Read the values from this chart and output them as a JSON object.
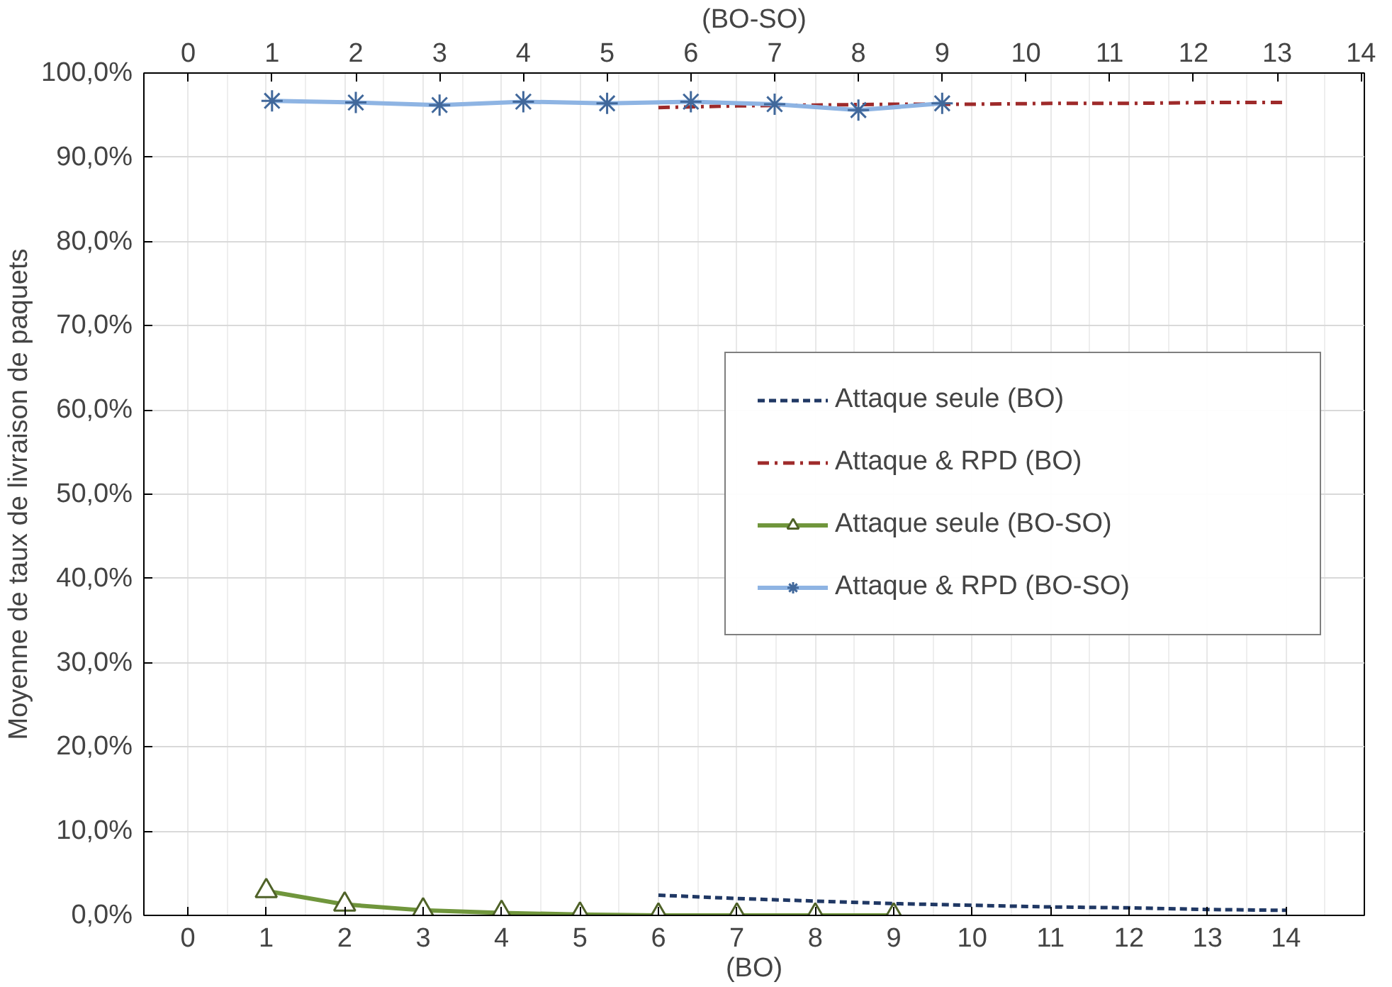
{
  "chart_data": {
    "type": "line",
    "xlabel": "(BO)",
    "x2label": "(BO-SO)",
    "ylabel": "Moyenne de taux de livraison de paquets",
    "xlim": [
      -0.56,
      15.0
    ],
    "xticks": [
      0,
      1,
      2,
      3,
      4,
      5,
      6,
      7,
      8,
      9,
      10,
      11,
      12,
      13,
      14
    ],
    "x2lim": [
      -0.53,
      14.04
    ],
    "x2ticks": [
      0,
      1,
      2,
      3,
      4,
      5,
      6,
      7,
      8,
      9,
      10,
      11,
      12,
      13,
      14
    ],
    "ylim": [
      0,
      100
    ],
    "yticks": [
      {
        "value": 0,
        "label": "0,0%"
      },
      {
        "value": 10,
        "label": "10,0%"
      },
      {
        "value": 20,
        "label": "20,0%"
      },
      {
        "value": 30,
        "label": "30,0%"
      },
      {
        "value": 40,
        "label": "40,0%"
      },
      {
        "value": 50,
        "label": "50,0%"
      },
      {
        "value": 60,
        "label": "60,0%"
      },
      {
        "value": 70,
        "label": "70,0%"
      },
      {
        "value": 80,
        "label": "80,0%"
      },
      {
        "value": 90,
        "label": "90,0%"
      },
      {
        "value": 100,
        "label": "100,0%"
      }
    ],
    "grid": true,
    "legend": "right",
    "series": [
      {
        "name": "Attaque seule (BO)",
        "color": "#203864",
        "line_style": "dashed",
        "marker": "none",
        "x": [
          6,
          7,
          8,
          9,
          10,
          11,
          12,
          13,
          14
        ],
        "values": [
          2.4,
          2.0,
          1.7,
          1.4,
          1.2,
          1.0,
          0.9,
          0.7,
          0.6
        ]
      },
      {
        "name": "Attaque & RPD (BO)",
        "color": "#9e2a2a",
        "line_style": "dashdot",
        "marker": "none",
        "x": [
          6,
          7,
          8,
          9,
          10,
          11,
          12,
          13,
          14
        ],
        "values": [
          95.9,
          96.1,
          96.2,
          96.3,
          96.3,
          96.4,
          96.4,
          96.5,
          96.5
        ]
      },
      {
        "name": "Attaque seule (BO-SO)",
        "color": "#70963c",
        "line_style": "solid",
        "marker": "triangle",
        "x": [
          1,
          2,
          3,
          4,
          5,
          6,
          7,
          8,
          9
        ],
        "values": [
          2.9,
          1.3,
          0.6,
          0.3,
          0.1,
          0,
          0,
          0,
          0
        ]
      },
      {
        "name": "Attaque & RPD (BO-SO)",
        "color": "#8eb4e3",
        "line_style": "solid",
        "marker": "cross",
        "axis": "x2",
        "x": [
          1,
          2,
          3,
          4,
          5,
          6,
          7,
          8,
          9
        ],
        "values": [
          96.7,
          96.5,
          96.2,
          96.6,
          96.4,
          96.6,
          96.3,
          95.6,
          96.4
        ]
      }
    ]
  }
}
